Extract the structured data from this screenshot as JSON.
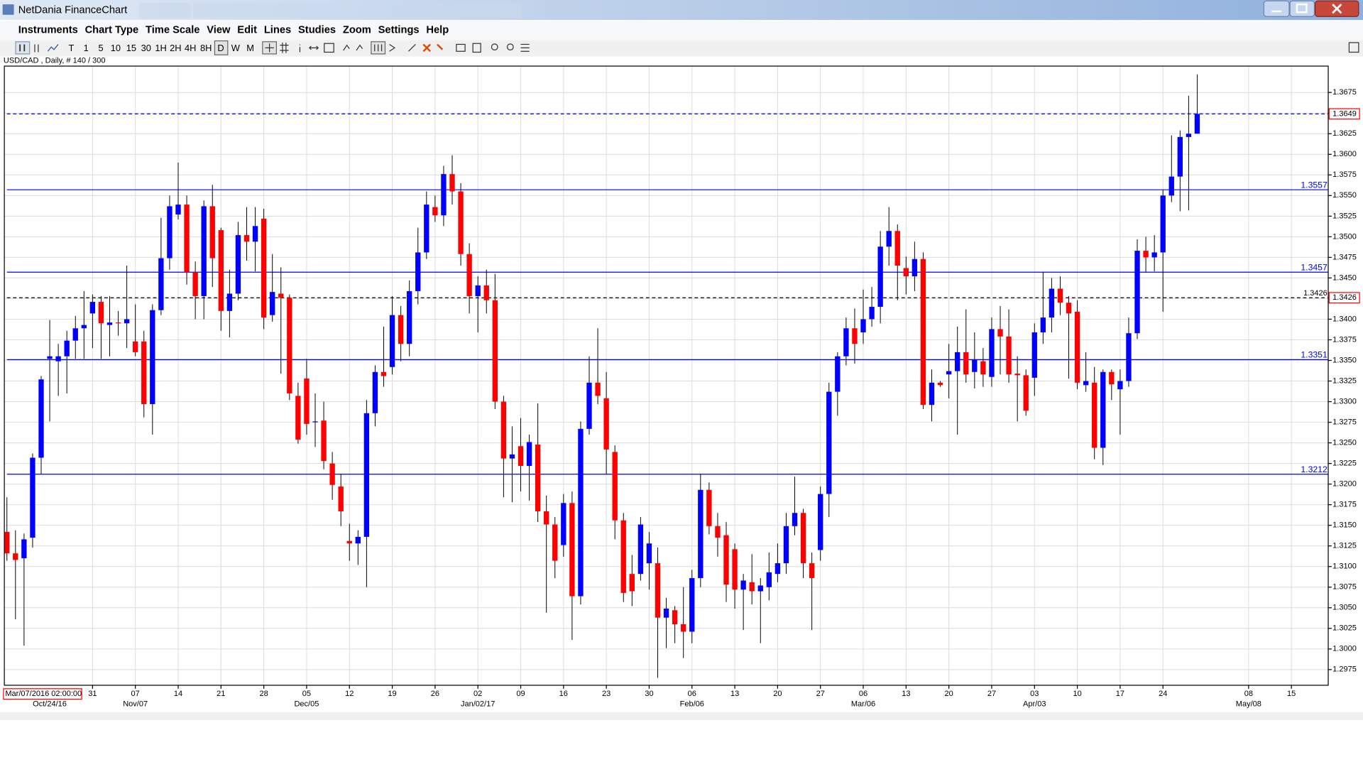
{
  "window": {
    "title": "NetDania FinanceChart",
    "menu": [
      "Instruments",
      "Chart Type",
      "Time Scale",
      "View",
      "Edit",
      "Lines",
      "Studies",
      "Zoom",
      "Settings",
      "Help"
    ],
    "toolbar": [
      "T",
      "1",
      "5",
      "10",
      "15",
      "30",
      "1H",
      "2H",
      "4H",
      "8H",
      "D",
      "W",
      "M"
    ]
  },
  "chart_data": {
    "type": "candlestick",
    "title": "USD/CAD , Daily, # 140 / 300",
    "cursor_label": "Mar/07/2016 02:00:00",
    "up_color": "#0000ff",
    "down_color": "#ff0000",
    "wick_color": "#000000",
    "grid": true,
    "xlim": [
      -0.3,
      154.3
    ],
    "xticks": [
      {
        "value": 10,
        "label": "31"
      },
      {
        "value": 15,
        "label": "07"
      },
      {
        "value": 20,
        "label": "14"
      },
      {
        "value": 25,
        "label": "21"
      },
      {
        "value": 30,
        "label": "28"
      },
      {
        "value": 35,
        "label": "05"
      },
      {
        "value": 40,
        "label": "12"
      },
      {
        "value": 45,
        "label": "19"
      },
      {
        "value": 50,
        "label": "26"
      },
      {
        "value": 55,
        "label": "02"
      },
      {
        "value": 60,
        "label": "09"
      },
      {
        "value": 65,
        "label": "16"
      },
      {
        "value": 70,
        "label": "23"
      },
      {
        "value": 75,
        "label": "30"
      },
      {
        "value": 80,
        "label": "06"
      },
      {
        "value": 85,
        "label": "13"
      },
      {
        "value": 90,
        "label": "20"
      },
      {
        "value": 95,
        "label": "27"
      },
      {
        "value": 100,
        "label": "06"
      },
      {
        "value": 105,
        "label": "13"
      },
      {
        "value": 110,
        "label": "20"
      },
      {
        "value": 115,
        "label": "27"
      },
      {
        "value": 120,
        "label": "03"
      },
      {
        "value": 125,
        "label": "10"
      },
      {
        "value": 130,
        "label": "17"
      },
      {
        "value": 135,
        "label": "24"
      },
      {
        "value": 145,
        "label": "08"
      },
      {
        "value": 150,
        "label": "15"
      }
    ],
    "month_labels": [
      {
        "value": 5,
        "label": "Oct/24/16"
      },
      {
        "value": 15,
        "label": "Nov/07"
      },
      {
        "value": 35,
        "label": "Dec/05"
      },
      {
        "value": 55,
        "label": "Jan/02/17"
      },
      {
        "value": 80,
        "label": "Feb/06"
      },
      {
        "value": 100,
        "label": "Mar/06"
      },
      {
        "value": 120,
        "label": "Apr/03"
      },
      {
        "value": 145,
        "label": "May/08"
      }
    ],
    "ylim": [
      1.2956,
      1.3707
    ],
    "yticks": [
      1.2975,
      {
        "value": 1.3,
        "label": "1.3000"
      },
      1.3025,
      {
        "value": 1.305,
        "label": "1.3050"
      },
      1.3075,
      {
        "value": 1.31,
        "label": "1.3100"
      },
      1.3125,
      {
        "value": 1.315,
        "label": "1.3150"
      },
      1.3175,
      {
        "value": 1.32,
        "label": "1.3200"
      },
      1.3225,
      {
        "value": 1.325,
        "label": "1.3250"
      },
      1.3275,
      {
        "value": 1.33,
        "label": "1.3300"
      },
      1.3325,
      {
        "value": 1.335,
        "label": "1.3350"
      },
      1.3375,
      {
        "value": 1.34,
        "label": "1.3400"
      },
      1.3425,
      {
        "value": 1.345,
        "label": "1.3450"
      },
      1.3475,
      {
        "value": 1.35,
        "label": "1.3500"
      },
      1.3525,
      {
        "value": 1.355,
        "label": "1.3550"
      },
      1.3575,
      {
        "value": 1.36,
        "label": "1.3600"
      },
      1.3625,
      {
        "value": 1.365,
        "label": "1.3650"
      },
      1.3675
    ],
    "levels": [
      1.3557,
      1.3457,
      1.3351,
      1.3212
    ],
    "level_color": "#0000ff",
    "last_price": 1.3649,
    "marker_line": 1.3426,
    "open": [
      1.3142,
      1.3116,
      1.311,
      1.3135,
      1.3232,
      1.3352,
      1.3349,
      1.3355,
      1.3374,
      1.3389,
      1.3407,
      1.3421,
      1.3393,
      1.3396,
      1.3395,
      1.3373,
      1.3373,
      1.3297,
      1.3411,
      1.3474,
      1.3527,
      1.3539,
      1.3457,
      1.3428,
      1.3537,
      1.3508,
      1.341,
      1.3431,
      1.3502,
      1.3494,
      1.3522,
      1.3405,
      1.3431,
      1.3426,
      1.3307,
      1.3328,
      1.3275,
      1.3277,
      1.3225,
      1.3197,
      1.3131,
      1.3128,
      1.3136,
      1.3286,
      1.3336,
      1.3342,
      1.3405,
      1.337,
      1.3434,
      1.3481,
      1.3536,
      1.3526,
      1.3576,
      1.3555,
      1.3479,
      1.3428,
      1.3441,
      1.3423,
      1.33,
      1.3231,
      1.3246,
      1.3222,
      1.3248,
      1.3167,
      1.3151,
      1.3126,
      1.3177,
      1.3064,
      1.3267,
      1.3323,
      1.3304,
      1.3239,
      1.3156,
      1.3091,
      1.3091,
      1.3104,
      1.3104,
      1.3038,
      1.3047,
      1.303,
      1.3021,
      1.3086,
      1.3193,
      1.3149,
      1.3138,
      1.3121,
      1.3072,
      1.3081,
      1.307,
      1.3075,
      1.3091,
      1.3104,
      1.3149,
      1.3165,
      1.3104,
      1.312,
      1.3188,
      1.3312,
      1.3355,
      1.3389,
      1.3384,
      1.34,
      1.3415,
      1.3488,
      1.3507,
      1.3462,
      1.3452,
      1.3473,
      1.3296,
      1.3323,
      1.3333,
      1.3337,
      1.336,
      1.3336,
      1.3349,
      1.333,
      1.3388,
      1.3379,
      1.3334,
      1.3332,
      1.3329,
      1.3384,
      1.3402,
      1.3437,
      1.342,
      1.3409,
      1.332,
      1.3323,
      1.3244,
      1.3336,
      1.3315,
      1.3325,
      1.3383,
      1.3483,
      1.3475,
      1.3481,
      1.355,
      1.3573,
      1.3621,
      1.3625
    ],
    "high": [
      1.3184,
      1.3144,
      1.314,
      1.3237,
      1.3331,
      1.3399,
      1.337,
      1.3386,
      1.3404,
      1.3434,
      1.343,
      1.3428,
      1.3428,
      1.341,
      1.3465,
      1.3418,
      1.3386,
      1.3418,
      1.3523,
      1.355,
      1.359,
      1.355,
      1.347,
      1.3544,
      1.3563,
      1.3511,
      1.346,
      1.3518,
      1.3536,
      1.3536,
      1.3534,
      1.3479,
      1.3463,
      1.343,
      1.3323,
      1.3352,
      1.331,
      1.33,
      1.3239,
      1.3212,
      1.3152,
      1.3144,
      1.3302,
      1.3344,
      1.3391,
      1.3428,
      1.3416,
      1.3447,
      1.3511,
      1.3555,
      1.355,
      1.3586,
      1.3599,
      1.3565,
      1.3492,
      1.3452,
      1.346,
      1.3455,
      1.3307,
      1.327,
      1.328,
      1.326,
      1.3298,
      1.3186,
      1.316,
      1.3188,
      1.3191,
      1.3276,
      1.3355,
      1.3389,
      1.3336,
      1.3247,
      1.3165,
      1.3114,
      1.316,
      1.3142,
      1.3123,
      1.3062,
      1.3052,
      1.3075,
      1.3096,
      1.3212,
      1.3202,
      1.3165,
      1.3154,
      1.3128,
      1.3091,
      1.3115,
      1.3086,
      1.3117,
      1.3128,
      1.3165,
      1.3209,
      1.317,
      1.3117,
      1.3197,
      1.3323,
      1.336,
      1.3402,
      1.3413,
      1.3436,
      1.3439,
      1.3507,
      1.3536,
      1.3515,
      1.3476,
      1.3494,
      1.3481,
      1.3339,
      1.3325,
      1.337,
      1.3391,
      1.3412,
      1.3384,
      1.3365,
      1.3402,
      1.3416,
      1.3412,
      1.3355,
      1.3339,
      1.3395,
      1.3457,
      1.345,
      1.3452,
      1.3428,
      1.3423,
      1.336,
      1.3342,
      1.3339,
      1.3339,
      1.3339,
      1.3402,
      1.3497,
      1.35,
      1.3502,
      1.3557,
      1.3623,
      1.3629,
      1.3671,
      1.3697
    ],
    "low": [
      1.3107,
      1.3036,
      1.3004,
      1.3123,
      1.3212,
      1.3276,
      1.3307,
      1.331,
      1.3352,
      1.3352,
      1.3365,
      1.3352,
      1.3355,
      1.338,
      1.3365,
      1.3355,
      1.3281,
      1.326,
      1.3405,
      1.346,
      1.3521,
      1.3442,
      1.34,
      1.34,
      1.3439,
      1.3386,
      1.3378,
      1.3423,
      1.3471,
      1.3458,
      1.3388,
      1.3397,
      1.3334,
      1.3302,
      1.3249,
      1.326,
      1.3245,
      1.3218,
      1.3181,
      1.3149,
      1.3107,
      1.3102,
      1.3075,
      1.327,
      1.3318,
      1.3333,
      1.3349,
      1.3355,
      1.3418,
      1.3473,
      1.3518,
      1.3513,
      1.3539,
      1.3465,
      1.3407,
      1.3384,
      1.3407,
      1.3291,
      1.3184,
      1.3178,
      1.3191,
      1.318,
      1.3154,
      1.3044,
      1.3086,
      1.3112,
      1.3011,
      1.3054,
      1.326,
      1.3297,
      1.3212,
      1.3133,
      1.3057,
      1.3052,
      1.3083,
      1.3072,
      1.2965,
      1.3001,
      1.3007,
      1.2989,
      1.3007,
      1.3075,
      1.3139,
      1.3112,
      1.3057,
      1.3049,
      1.3023,
      1.3054,
      1.3007,
      1.3059,
      1.3081,
      1.3091,
      1.3138,
      1.3086,
      1.3023,
      1.3107,
      1.316,
      1.3283,
      1.3344,
      1.3346,
      1.337,
      1.3391,
      1.3395,
      1.3465,
      1.3423,
      1.343,
      1.3434,
      1.3291,
      1.3276,
      1.3318,
      1.3304,
      1.326,
      1.3323,
      1.3316,
      1.3318,
      1.3318,
      1.3333,
      1.3323,
      1.3276,
      1.3283,
      1.3307,
      1.337,
      1.3384,
      1.3405,
      1.3328,
      1.3315,
      1.3312,
      1.323,
      1.3223,
      1.3302,
      1.326,
      1.3318,
      1.3376,
      1.3457,
      1.3458,
      1.3409,
      1.3542,
      1.3531,
      1.3532,
      1.3625
    ],
    "close": [
      1.3116,
      1.3108,
      1.3133,
      1.3232,
      1.3327,
      1.3355,
      1.3355,
      1.3374,
      1.3389,
      1.3393,
      1.3421,
      1.3395,
      1.3396,
      1.3395,
      1.34,
      1.336,
      1.3297,
      1.3411,
      1.3474,
      1.3537,
      1.3539,
      1.3457,
      1.3428,
      1.3537,
      1.3474,
      1.341,
      1.3431,
      1.3502,
      1.3494,
      1.3513,
      1.3402,
      1.3433,
      1.3426,
      1.331,
      1.3254,
      1.3273,
      1.3276,
      1.3228,
      1.3199,
      1.3167,
      1.3128,
      1.3136,
      1.3286,
      1.3336,
      1.3331,
      1.3405,
      1.337,
      1.3434,
      1.3481,
      1.3539,
      1.3526,
      1.3576,
      1.3555,
      1.3479,
      1.3428,
      1.3441,
      1.3423,
      1.33,
      1.3231,
      1.3236,
      1.3222,
      1.3251,
      1.3167,
      1.3151,
      1.3107,
      1.3177,
      1.3064,
      1.3267,
      1.3323,
      1.3307,
      1.3242,
      1.3156,
      1.3068,
      1.307,
      1.3151,
      1.3128,
      1.3038,
      1.3049,
      1.303,
      1.3021,
      1.3086,
      1.3193,
      1.3149,
      1.3135,
      1.3078,
      1.3072,
      1.3083,
      1.307,
      1.3077,
      1.3093,
      1.3104,
      1.3149,
      1.3165,
      1.3104,
      1.3086,
      1.3188,
      1.3312,
      1.3355,
      1.3389,
      1.337,
      1.34,
      1.3415,
      1.3488,
      1.3507,
      1.3465,
      1.3452,
      1.3473,
      1.3296,
      1.3323,
      1.332,
      1.3337,
      1.336,
      1.3333,
      1.3351,
      1.3333,
      1.3388,
      1.3379,
      1.3333,
      1.3332,
      1.3289,
      1.3384,
      1.3402,
      1.3437,
      1.342,
      1.3407,
      1.3323,
      1.3325,
      1.3244,
      1.3336,
      1.3321,
      1.3325,
      1.3383,
      1.3483,
      1.3475,
      1.3481,
      1.355,
      1.3573,
      1.3621,
      1.3625,
      1.3649
    ]
  }
}
